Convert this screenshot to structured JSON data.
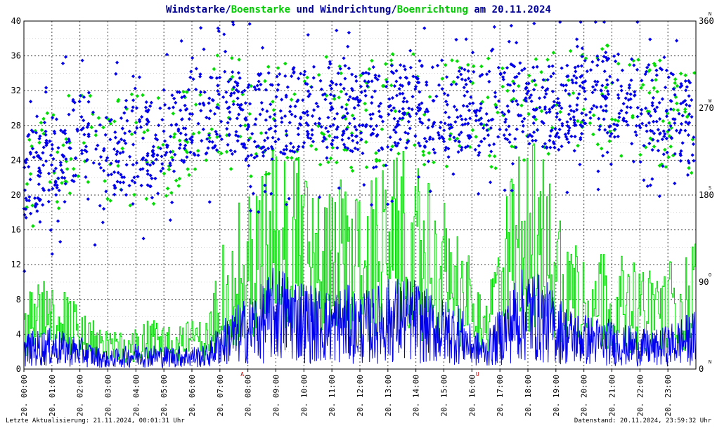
{
  "chart_data": {
    "type": "line",
    "title": {
      "part1": "Windstarke",
      "sep1": "/",
      "part2": "Boenstarke",
      "part3": " und ",
      "part4": "Windrichtung",
      "sep2": "/",
      "part5": "Boenrichtung",
      "part6": " am 20.11.2024"
    },
    "colors": {
      "wind": "#0000ee",
      "gust": "#00dd00",
      "title_dark": "#000099",
      "title_green": "#00cc00",
      "grid": "#000000",
      "marker": "#cc0000"
    },
    "x_ticks": [
      "20. 00:00",
      "20. 01:00",
      "20. 02:00",
      "20. 03:00",
      "20. 04:00",
      "20. 05:00",
      "20. 06:00",
      "20. 07:00",
      "20. 08:00",
      "20. 09:00",
      "20. 10:00",
      "20. 11:00",
      "20. 12:00",
      "20. 13:00",
      "20. 14:00",
      "20. 15:00",
      "20. 16:00",
      "20. 17:00",
      "20. 18:00",
      "20. 19:00",
      "20. 20:00",
      "20. 21:00",
      "20. 22:00",
      "20. 23:00"
    ],
    "y_left": {
      "ticks": [
        0,
        4,
        8,
        12,
        16,
        20,
        24,
        28,
        32,
        36,
        40
      ],
      "range": [
        0,
        40
      ]
    },
    "y_right": {
      "ticks": [
        0,
        90,
        180,
        270,
        360
      ],
      "range": [
        0,
        360
      ],
      "compass": [
        {
          "label": "N",
          "value": 0
        },
        {
          "label": "O",
          "value": 90
        },
        {
          "label": "S",
          "value": 180
        },
        {
          "label": "W",
          "value": 270
        },
        {
          "label": "N",
          "value": 360
        }
      ]
    },
    "x_range_hours": [
      0,
      24
    ],
    "grid": true,
    "sun_markers": [
      {
        "label": "A",
        "hour": 7.8
      },
      {
        "label": "U",
        "hour": 16.2
      }
    ],
    "series": [
      {
        "name": "Windstarke",
        "kind": "speed",
        "color": "#0000ee",
        "hours": [
          0,
          1,
          2,
          3,
          4,
          5,
          6,
          6.5,
          7,
          7.5,
          8,
          8.5,
          9,
          9.5,
          10,
          10.5,
          11,
          11.5,
          12,
          12.5,
          13,
          13.5,
          14,
          14.5,
          15,
          15.5,
          16,
          16.5,
          17,
          17.5,
          18,
          18.5,
          19,
          19.5,
          20,
          20.5,
          21,
          21.5,
          22,
          22.5,
          23,
          23.5,
          24
        ],
        "values": [
          2.5,
          2.8,
          2.2,
          1.2,
          1.8,
          1.6,
          1.6,
          1.6,
          3.2,
          4.2,
          5.0,
          5.8,
          7.2,
          6.8,
          6.2,
          5.6,
          5.4,
          5.8,
          5.2,
          5.6,
          6.2,
          6.4,
          6.2,
          5.2,
          4.8,
          4.6,
          2.8,
          2.2,
          4.2,
          6.2,
          7.2,
          6.4,
          5.2,
          4.2,
          3.8,
          3.6,
          3.4,
          3.0,
          2.8,
          2.6,
          3.0,
          3.6,
          4.0
        ]
      },
      {
        "name": "Boenstarke",
        "kind": "speed",
        "color": "#00dd00",
        "hours": [
          0,
          1,
          2,
          3,
          4,
          5,
          6,
          6.5,
          7,
          7.5,
          8,
          8.5,
          9,
          9.5,
          10,
          10.5,
          11,
          11.5,
          12,
          12.5,
          13,
          13.5,
          14,
          14.5,
          15,
          15.5,
          16,
          16.5,
          17,
          17.5,
          18,
          18.5,
          19,
          19.5,
          20,
          20.5,
          21,
          21.5,
          22,
          22.5,
          23,
          23.5,
          24
        ],
        "values": [
          6,
          8,
          5,
          3,
          4,
          4,
          4,
          4,
          10,
          13,
          15,
          17,
          20,
          19,
          17,
          15,
          15,
          16,
          15,
          16,
          17,
          18,
          17,
          15,
          14,
          13,
          8,
          6,
          12,
          17,
          20,
          18,
          14,
          12,
          11,
          10,
          10,
          9,
          9,
          8,
          9,
          10,
          11
        ]
      },
      {
        "name": "Windrichtung",
        "kind": "direction",
        "color": "#0000ee",
        "hours": [
          0,
          1,
          2,
          3,
          4,
          5,
          6,
          7,
          8,
          9,
          10,
          11,
          12,
          13,
          14,
          15,
          16,
          17,
          18,
          19,
          20,
          21,
          22,
          23,
          24
        ],
        "values": [
          200,
          215,
          240,
          215,
          235,
          230,
          265,
          270,
          260,
          265,
          270,
          275,
          265,
          270,
          275,
          270,
          265,
          270,
          275,
          270,
          280,
          285,
          275,
          265,
          250
        ]
      },
      {
        "name": "Boenrichtung",
        "kind": "direction",
        "color": "#00dd00",
        "hours": [
          0,
          1,
          2,
          3,
          4,
          5,
          6,
          7,
          8,
          9,
          10,
          11,
          12,
          13,
          14,
          15,
          16,
          17,
          18,
          19,
          20,
          21,
          22,
          23,
          24
        ],
        "values": [
          195,
          212,
          238,
          212,
          232,
          228,
          262,
          268,
          258,
          262,
          268,
          272,
          262,
          268,
          272,
          268,
          262,
          268,
          272,
          268,
          278,
          282,
          272,
          262,
          248
        ]
      }
    ],
    "footer_left": "Letzte Aktualisierung: 21.11.2024, 00:01:31 Uhr",
    "footer_right": "Datenstand: 20.11.2024, 23:59:32 Uhr"
  }
}
